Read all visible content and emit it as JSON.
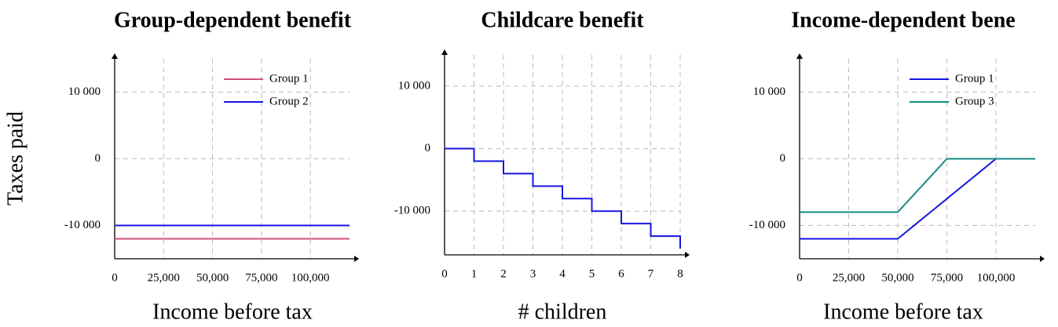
{
  "chart_data": [
    {
      "type": "line",
      "title": "Group-dependent benefit",
      "xlabel": "Income before tax",
      "ylabel": "Taxes paid",
      "x": [
        0,
        120000
      ],
      "series": [
        {
          "name": "Group 1",
          "color": "#d0507a",
          "values": [
            -12000,
            -12000
          ]
        },
        {
          "name": "Group 2",
          "color": "#1515e0",
          "values": [
            -10000,
            -10000
          ]
        }
      ],
      "xlim": [
        0,
        120000
      ],
      "ylim": [
        -15000,
        15000
      ],
      "xticks": [
        0,
        {
          "value": 25000,
          "label": "25,000"
        },
        {
          "value": 50000,
          "label": "50,000"
        },
        {
          "value": 75000,
          "label": "75,000"
        },
        {
          "value": 100000,
          "label": "100,000"
        }
      ],
      "yticks": [
        {
          "value": -10000,
          "label": "-10 000"
        },
        0,
        {
          "value": 10000,
          "label": "10 000"
        }
      ],
      "grid": true,
      "legend": "upper right"
    },
    {
      "type": "line",
      "title": "Childcare benefit",
      "xlabel": "# children",
      "x": [
        0,
        1,
        1,
        2,
        2,
        3,
        3,
        4,
        4,
        5,
        5,
        6,
        6,
        7,
        7,
        8,
        8
      ],
      "series": [
        {
          "color": "#1515e0",
          "values": [
            0,
            0,
            -2000,
            -2000,
            -4000,
            -4000,
            -6000,
            -6000,
            -8000,
            -8000,
            -10000,
            -10000,
            -12000,
            -12000,
            -14000,
            -14000,
            -16000
          ]
        }
      ],
      "xlim": [
        0,
        8
      ],
      "ylim": [
        -17000,
        15000
      ],
      "xticks": [
        0,
        1,
        2,
        3,
        4,
        5,
        6,
        7,
        8
      ],
      "yticks": [
        {
          "value": -10000,
          "label": "-10 000"
        },
        0,
        {
          "value": 10000,
          "label": "10 000"
        }
      ],
      "grid": true
    },
    {
      "type": "line",
      "title": "Income-dependent bene",
      "xlabel": "Income before tax",
      "x": [
        0,
        50000,
        75000,
        100000,
        120000
      ],
      "series": [
        {
          "name": "Group 1",
          "color": "#1515e0",
          "values": [
            -12000,
            -12000,
            -6000,
            0,
            0
          ]
        },
        {
          "name": "Group 3",
          "color": "#138a84",
          "values": [
            -8000,
            -8000,
            0,
            0,
            0
          ]
        }
      ],
      "xlim": [
        0,
        120000
      ],
      "ylim": [
        -15000,
        15000
      ],
      "xticks": [
        0,
        {
          "value": 25000,
          "label": "25,000"
        },
        {
          "value": 50000,
          "label": "50,000"
        },
        {
          "value": 75000,
          "label": "75,000"
        },
        {
          "value": 100000,
          "label": "100,000"
        }
      ],
      "yticks": [
        {
          "value": -10000,
          "label": "-10 000"
        },
        0,
        {
          "value": 10000,
          "label": "10 000"
        }
      ],
      "grid": true,
      "legend": "upper right"
    }
  ]
}
